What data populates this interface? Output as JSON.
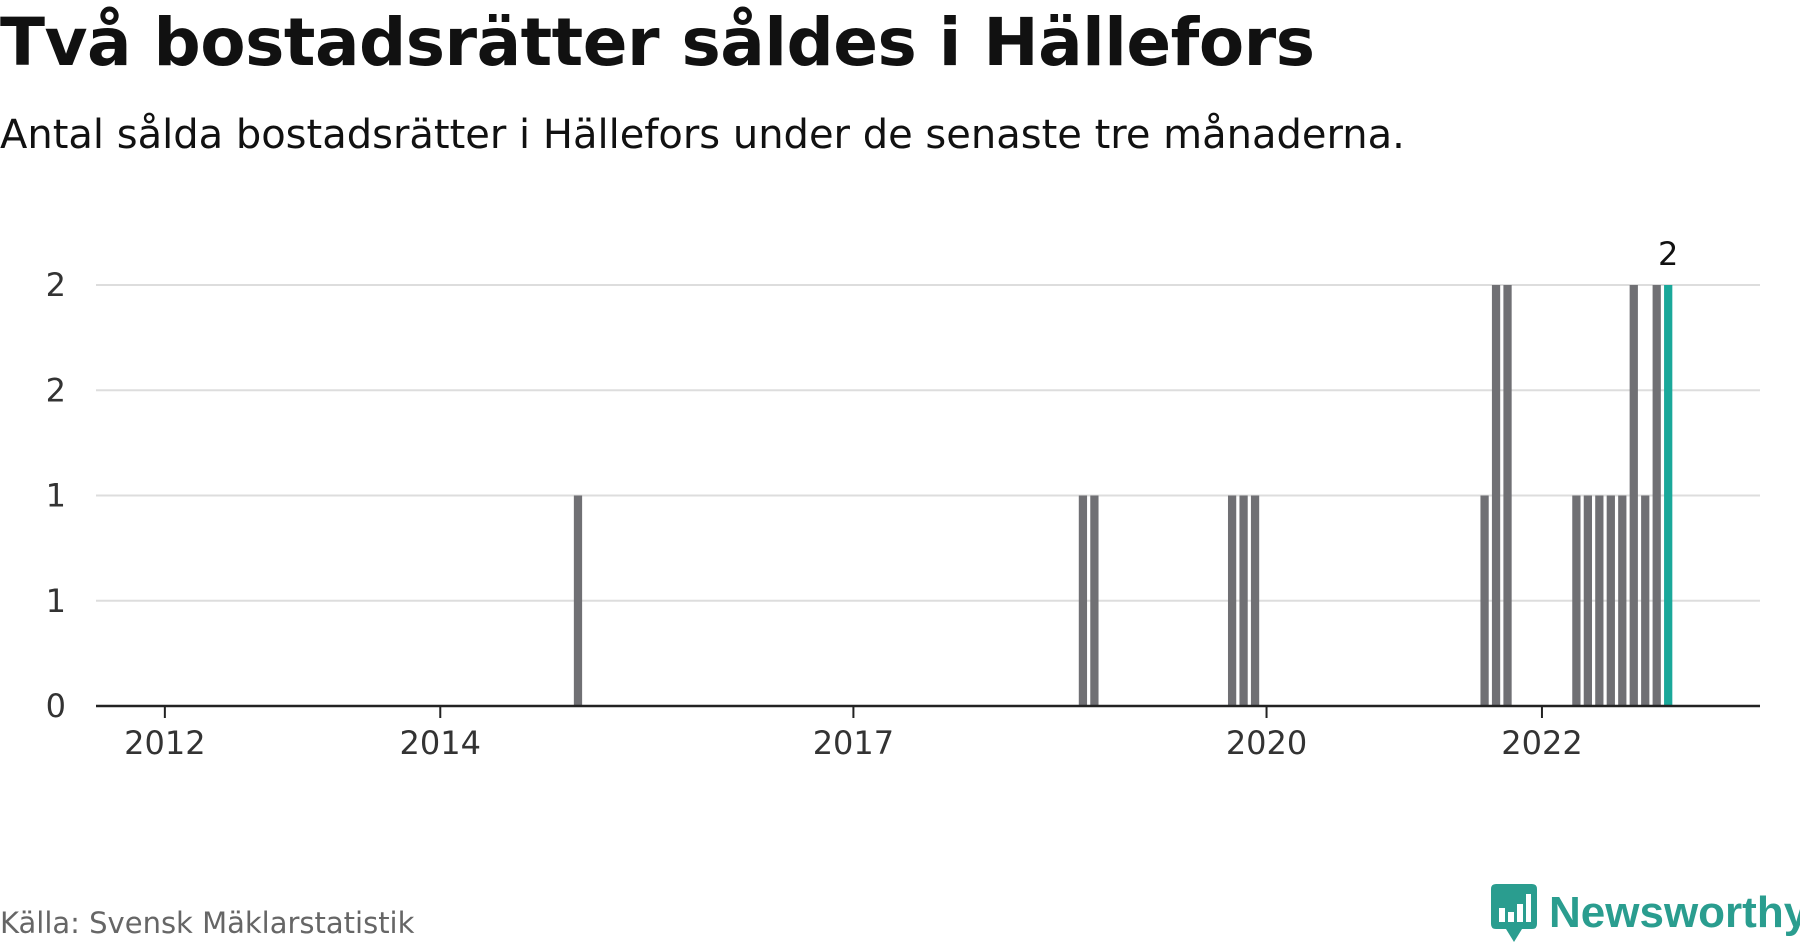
{
  "title": "Två bostadsrätter såldes i Hällefors",
  "subtitle": "Antal sålda bostadsrätter i Hällefors under de senaste tre månaderna.",
  "source": "Källa: Svensk Mäklarstatistik",
  "brand": {
    "name": "Newsworthy",
    "icon": "newsworthy-logo-icon"
  },
  "colors": {
    "bar": "#707074",
    "highlight": "#1aa89a",
    "grid": "#dddddd",
    "axis": "#222222"
  },
  "chart_data": {
    "type": "bar",
    "title": "Två bostadsrätter såldes i Hällefors",
    "xlabel": "",
    "ylabel": "",
    "grid": true,
    "legend": "none",
    "ylim": [
      0,
      2
    ],
    "xlim": [
      "2011-07",
      "2023-08"
    ],
    "y_ticks": [
      {
        "value": 0,
        "label": "0"
      },
      {
        "value": 0.5,
        "label": "1"
      },
      {
        "value": 1,
        "label": "1"
      },
      {
        "value": 1.5,
        "label": "2"
      },
      {
        "value": 2,
        "label": "2"
      }
    ],
    "x_ticks": [
      {
        "date": "2012-01",
        "label": "2012"
      },
      {
        "date": "2014-01",
        "label": "2014"
      },
      {
        "date": "2017-01",
        "label": "2017"
      },
      {
        "date": "2020-01",
        "label": "2020"
      },
      {
        "date": "2022-01",
        "label": "2022"
      }
    ],
    "series": [
      {
        "x": [
          "2015-01",
          "2018-09",
          "2018-10",
          "2019-10",
          "2019-11",
          "2019-12",
          "2021-08",
          "2021-09",
          "2021-10",
          "2022-04",
          "2022-05",
          "2022-06",
          "2022-07",
          "2022-08",
          "2022-09",
          "2022-10",
          "2022-11",
          "2022-12"
        ],
        "values": [
          1,
          1,
          1,
          1,
          1,
          1,
          1,
          2,
          2,
          1,
          1,
          1,
          1,
          1,
          2,
          1,
          2,
          2
        ]
      }
    ],
    "highlight": {
      "x": "2022-12",
      "value": 2,
      "label": "2"
    }
  }
}
